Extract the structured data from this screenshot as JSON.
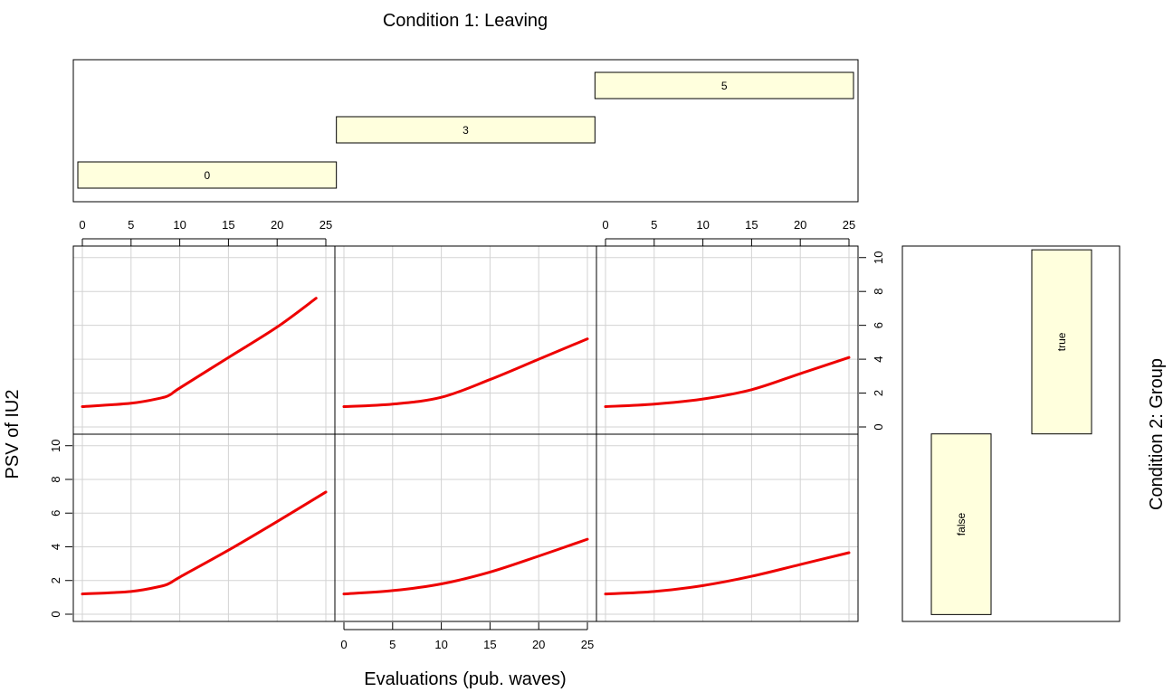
{
  "chart_data": {
    "type": "line",
    "title": "Condition 1: Leaving",
    "xlabel": "Evaluations (pub. waves)",
    "ylabel": "PSV of IU2",
    "row_condition_label": "Condition 2: Group",
    "xticks": [
      0,
      5,
      10,
      15,
      20,
      25
    ],
    "yticks": [
      0,
      2,
      4,
      6,
      8,
      10
    ],
    "xlim": [
      0,
      25
    ],
    "ylim": [
      0,
      10
    ],
    "grid": true,
    "line_color": "#ee0000",
    "strip_color": "#ffffdd",
    "shingle_levels": [
      {
        "label": "0",
        "range": [
          0,
          26
        ]
      },
      {
        "label": "3",
        "range": [
          26,
          52
        ]
      },
      {
        "label": "5",
        "range": [
          52,
          78
        ]
      }
    ],
    "group_levels": [
      {
        "label": "false",
        "range": [
          -10.8,
          -0.4
        ]
      },
      {
        "label": "true",
        "range": [
          -0.4,
          10.2
        ]
      }
    ],
    "panels": [
      {
        "leaving": "0",
        "group": "true",
        "x": [
          0,
          5,
          8,
          9,
          10,
          15,
          20,
          24
        ],
        "y": [
          1.2,
          1.4,
          1.7,
          1.9,
          2.3,
          4.1,
          5.9,
          7.6
        ]
      },
      {
        "leaving": "3",
        "group": "true",
        "x": [
          0,
          5,
          10,
          15,
          20,
          25
        ],
        "y": [
          1.2,
          1.35,
          1.75,
          2.8,
          4.0,
          5.2
        ]
      },
      {
        "leaving": "5",
        "group": "true",
        "x": [
          0,
          5,
          10,
          15,
          20,
          25
        ],
        "y": [
          1.2,
          1.35,
          1.65,
          2.2,
          3.15,
          4.1
        ]
      },
      {
        "leaving": "0",
        "group": "false",
        "x": [
          0,
          5,
          8,
          9,
          10,
          15,
          20,
          25
        ],
        "y": [
          1.2,
          1.35,
          1.65,
          1.85,
          2.2,
          3.8,
          5.5,
          7.25
        ]
      },
      {
        "leaving": "3",
        "group": "false",
        "x": [
          0,
          5,
          10,
          15,
          20,
          25
        ],
        "y": [
          1.2,
          1.4,
          1.8,
          2.5,
          3.45,
          4.45
        ]
      },
      {
        "leaving": "5",
        "group": "false",
        "x": [
          0,
          5,
          10,
          15,
          20,
          25
        ],
        "y": [
          1.2,
          1.35,
          1.7,
          2.25,
          2.95,
          3.65
        ]
      }
    ]
  }
}
